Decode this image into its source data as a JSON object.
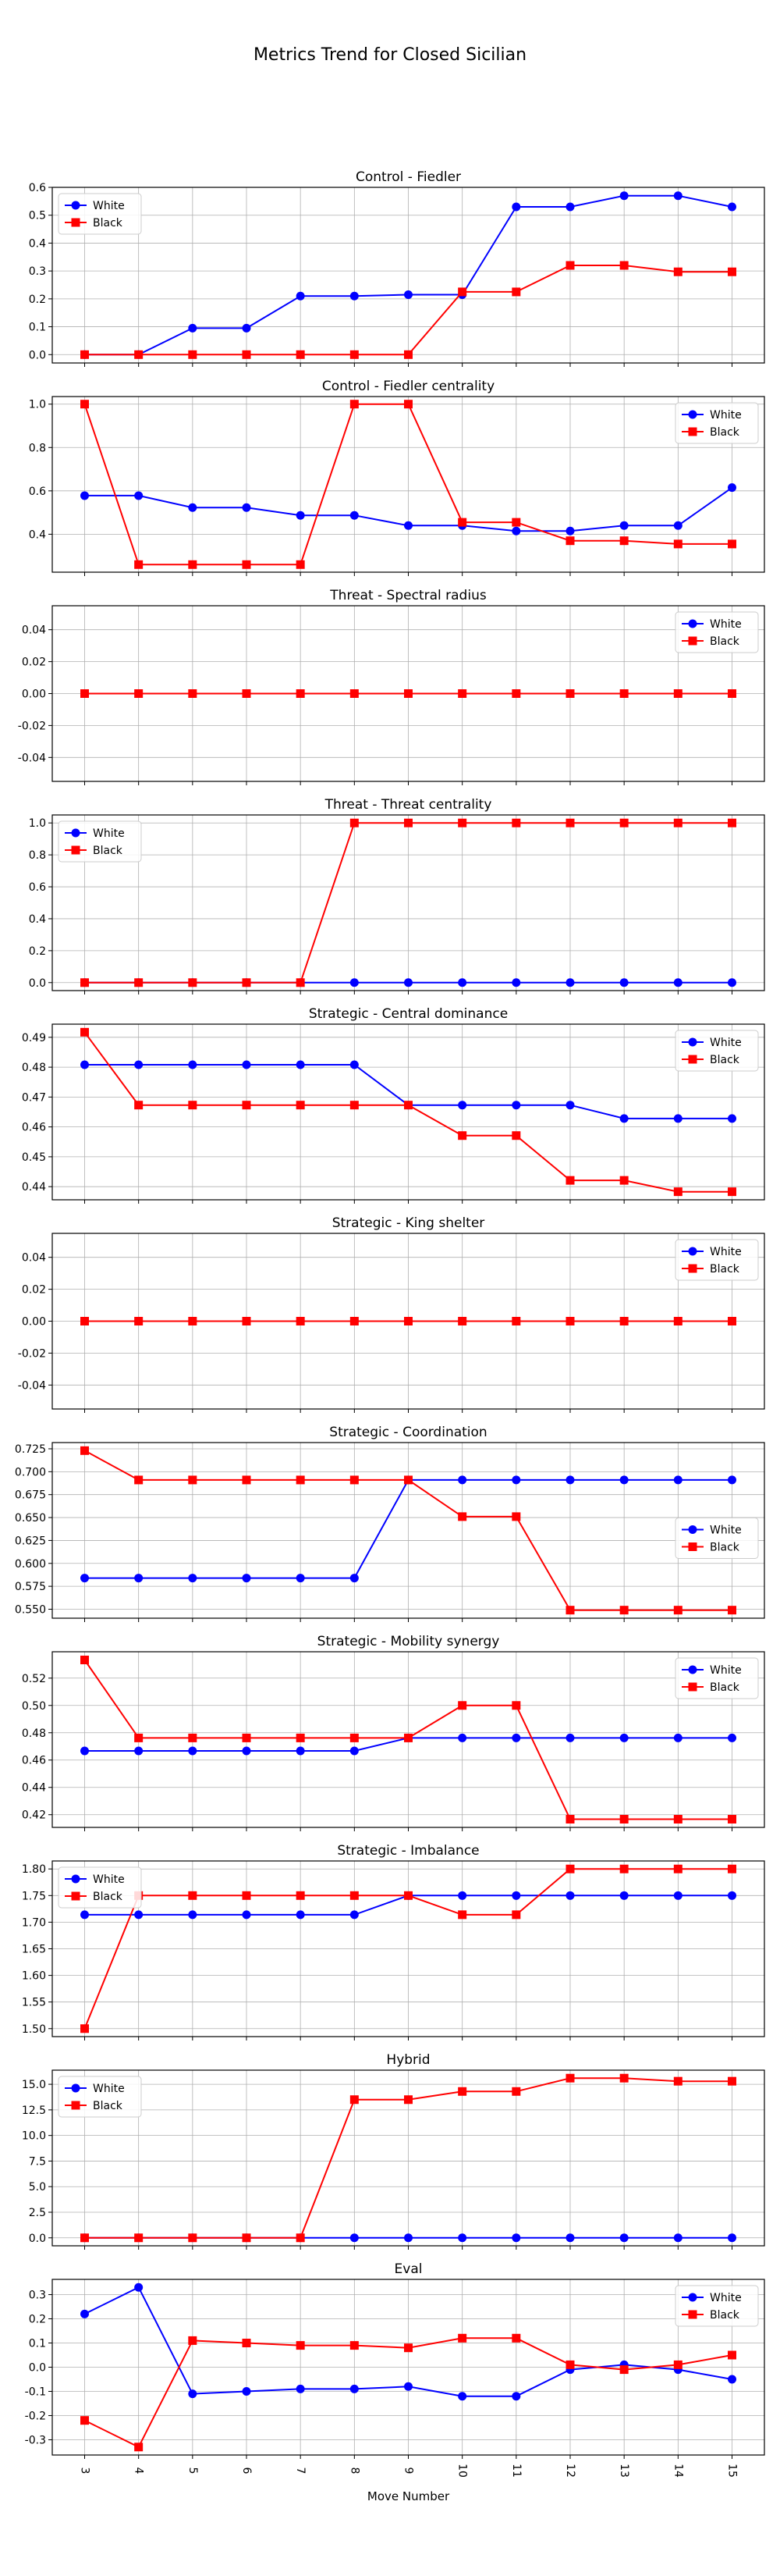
{
  "figure": {
    "title": "Metrics Trend for Closed Sicilian",
    "xlabel": "Move Number",
    "legend_labels": [
      "White",
      "Black"
    ],
    "colors": {
      "white": "#0000ff",
      "black": "#ff0000"
    }
  },
  "chart_data": [
    {
      "type": "line",
      "title": "Control - Fiedler",
      "x": [
        3,
        4,
        5,
        6,
        7,
        8,
        9,
        10,
        11,
        12,
        13,
        14,
        15
      ],
      "series": [
        {
          "name": "White",
          "marker": "circle",
          "values": [
            0.0,
            0.0,
            0.095,
            0.095,
            0.21,
            0.21,
            0.215,
            0.215,
            0.53,
            0.53,
            0.57,
            0.57,
            0.53
          ]
        },
        {
          "name": "Black",
          "marker": "square",
          "values": [
            0.0,
            0.0,
            0.0,
            0.0,
            0.0,
            0.0,
            0.0,
            0.225,
            0.225,
            0.32,
            0.32,
            0.297,
            0.297
          ]
        }
      ],
      "yticks": [
        0.0,
        0.1,
        0.2,
        0.3,
        0.4,
        0.5,
        0.6
      ],
      "ylim": [
        -0.03,
        0.6
      ],
      "legend": "upper left",
      "grid": true
    },
    {
      "type": "line",
      "title": "Control - Fiedler centrality",
      "x": [
        3,
        4,
        5,
        6,
        7,
        8,
        9,
        10,
        11,
        12,
        13,
        14,
        15
      ],
      "series": [
        {
          "name": "White",
          "marker": "circle",
          "values": [
            0.578,
            0.578,
            0.523,
            0.523,
            0.487,
            0.487,
            0.44,
            0.44,
            0.415,
            0.415,
            0.44,
            0.44,
            0.615
          ]
        },
        {
          "name": "Black",
          "marker": "square",
          "values": [
            1.0,
            0.26,
            0.26,
            0.26,
            0.26,
            1.0,
            1.0,
            0.455,
            0.455,
            0.37,
            0.37,
            0.355,
            0.355
          ]
        }
      ],
      "yticks": [
        0.4,
        0.6,
        0.8,
        1.0
      ],
      "ylim": [
        0.225,
        1.035
      ],
      "legend": "upper right",
      "grid": true
    },
    {
      "type": "line",
      "title": "Threat - Spectral radius",
      "x": [
        3,
        4,
        5,
        6,
        7,
        8,
        9,
        10,
        11,
        12,
        13,
        14,
        15
      ],
      "series": [
        {
          "name": "White",
          "marker": "circle",
          "values": [
            0,
            0,
            0,
            0,
            0,
            0,
            0,
            0,
            0,
            0,
            0,
            0,
            0
          ]
        },
        {
          "name": "Black",
          "marker": "square",
          "values": [
            0,
            0,
            0,
            0,
            0,
            0,
            0,
            0,
            0,
            0,
            0,
            0,
            0
          ]
        }
      ],
      "yticks": [
        -0.04,
        -0.02,
        0.0,
        0.02,
        0.04
      ],
      "ylim": [
        -0.055,
        0.055
      ],
      "legend": "upper right",
      "grid": true
    },
    {
      "type": "line",
      "title": "Threat - Threat centrality",
      "x": [
        3,
        4,
        5,
        6,
        7,
        8,
        9,
        10,
        11,
        12,
        13,
        14,
        15
      ],
      "series": [
        {
          "name": "White",
          "marker": "circle",
          "values": [
            0,
            0,
            0,
            0,
            0,
            0,
            0,
            0,
            0,
            0,
            0,
            0,
            0
          ]
        },
        {
          "name": "Black",
          "marker": "square",
          "values": [
            0,
            0,
            0,
            0,
            0,
            1,
            1,
            1,
            1,
            1,
            1,
            1,
            1
          ]
        }
      ],
      "yticks": [
        0.0,
        0.2,
        0.4,
        0.6,
        0.8,
        1.0
      ],
      "ylim": [
        -0.05,
        1.05
      ],
      "legend": "upper left",
      "grid": true
    },
    {
      "type": "line",
      "title": "Strategic - Central dominance",
      "x": [
        3,
        4,
        5,
        6,
        7,
        8,
        9,
        10,
        11,
        12,
        13,
        14,
        15
      ],
      "series": [
        {
          "name": "White",
          "marker": "circle",
          "values": [
            0.4808,
            0.4808,
            0.4808,
            0.4808,
            0.4808,
            0.4808,
            0.4673,
            0.4673,
            0.4673,
            0.4673,
            0.4628,
            0.4628,
            0.4628
          ]
        },
        {
          "name": "Black",
          "marker": "square",
          "values": [
            0.4917,
            0.4673,
            0.4673,
            0.4673,
            0.4673,
            0.4673,
            0.4673,
            0.4571,
            0.4571,
            0.4421,
            0.4421,
            0.4383,
            0.4383
          ]
        }
      ],
      "yticks": [
        0.44,
        0.45,
        0.46,
        0.47,
        0.48,
        0.49
      ],
      "ylim": [
        0.4356,
        0.4944
      ],
      "legend": "upper right",
      "grid": true
    },
    {
      "type": "line",
      "title": "Strategic - King shelter",
      "x": [
        3,
        4,
        5,
        6,
        7,
        8,
        9,
        10,
        11,
        12,
        13,
        14,
        15
      ],
      "series": [
        {
          "name": "White",
          "marker": "circle",
          "values": [
            0,
            0,
            0,
            0,
            0,
            0,
            0,
            0,
            0,
            0,
            0,
            0,
            0
          ]
        },
        {
          "name": "Black",
          "marker": "square",
          "values": [
            0,
            0,
            0,
            0,
            0,
            0,
            0,
            0,
            0,
            0,
            0,
            0,
            0
          ]
        }
      ],
      "yticks": [
        -0.04,
        -0.02,
        0.0,
        0.02,
        0.04
      ],
      "ylim": [
        -0.055,
        0.055
      ],
      "legend": "upper right",
      "grid": true
    },
    {
      "type": "line",
      "title": "Strategic - Coordination",
      "x": [
        3,
        4,
        5,
        6,
        7,
        8,
        9,
        10,
        11,
        12,
        13,
        14,
        15
      ],
      "series": [
        {
          "name": "White",
          "marker": "circle",
          "values": [
            0.584,
            0.584,
            0.584,
            0.584,
            0.584,
            0.584,
            0.691,
            0.691,
            0.691,
            0.691,
            0.691,
            0.691,
            0.691
          ]
        },
        {
          "name": "Black",
          "marker": "square",
          "values": [
            0.723,
            0.691,
            0.691,
            0.691,
            0.691,
            0.691,
            0.691,
            0.651,
            0.651,
            0.549,
            0.549,
            0.549,
            0.549
          ]
        }
      ],
      "yticks": [
        0.55,
        0.575,
        0.6,
        0.625,
        0.65,
        0.675,
        0.7,
        0.725
      ],
      "ylim": [
        0.5402,
        0.7318
      ],
      "legend": "center right",
      "grid": true
    },
    {
      "type": "line",
      "title": "Strategic - Mobility synergy",
      "x": [
        3,
        4,
        5,
        6,
        7,
        8,
        9,
        10,
        11,
        12,
        13,
        14,
        15
      ],
      "series": [
        {
          "name": "White",
          "marker": "circle",
          "values": [
            0.4667,
            0.4667,
            0.4667,
            0.4667,
            0.4667,
            0.4667,
            0.4762,
            0.4762,
            0.4762,
            0.4762,
            0.4762,
            0.4762,
            0.4762
          ]
        },
        {
          "name": "Black",
          "marker": "square",
          "values": [
            0.5333,
            0.4762,
            0.4762,
            0.4762,
            0.4762,
            0.4762,
            0.4762,
            0.5,
            0.5,
            0.4167,
            0.4167,
            0.4167,
            0.4167
          ]
        }
      ],
      "yticks": [
        0.42,
        0.44,
        0.46,
        0.48,
        0.5,
        0.52
      ],
      "ylim": [
        0.4107,
        0.5393
      ],
      "legend": "upper right",
      "grid": true
    },
    {
      "type": "line",
      "title": "Strategic - Imbalance",
      "x": [
        3,
        4,
        5,
        6,
        7,
        8,
        9,
        10,
        11,
        12,
        13,
        14,
        15
      ],
      "series": [
        {
          "name": "White",
          "marker": "circle",
          "values": [
            1.714,
            1.714,
            1.714,
            1.714,
            1.714,
            1.714,
            1.75,
            1.75,
            1.75,
            1.75,
            1.75,
            1.75,
            1.75
          ]
        },
        {
          "name": "Black",
          "marker": "square",
          "values": [
            1.5,
            1.75,
            1.75,
            1.75,
            1.75,
            1.75,
            1.75,
            1.714,
            1.714,
            1.8,
            1.8,
            1.8,
            1.8
          ]
        }
      ],
      "yticks": [
        1.5,
        1.55,
        1.6,
        1.65,
        1.7,
        1.75,
        1.8
      ],
      "ylim": [
        1.485,
        1.815
      ],
      "legend": "upper left",
      "grid": true
    },
    {
      "type": "line",
      "title": "Hybrid",
      "x": [
        3,
        4,
        5,
        6,
        7,
        8,
        9,
        10,
        11,
        12,
        13,
        14,
        15
      ],
      "series": [
        {
          "name": "White",
          "marker": "circle",
          "values": [
            0,
            0,
            0,
            0,
            0,
            0,
            0,
            0,
            0,
            0,
            0,
            0,
            0
          ]
        },
        {
          "name": "Black",
          "marker": "square",
          "values": [
            0,
            0,
            0,
            0,
            0,
            13.5,
            13.5,
            14.3,
            14.3,
            15.6,
            15.6,
            15.3,
            15.3
          ]
        }
      ],
      "yticks": [
        0.0,
        2.5,
        5.0,
        7.5,
        10.0,
        12.5,
        15.0
      ],
      "ylim": [
        -0.78,
        16.38
      ],
      "legend": "upper left",
      "grid": true
    },
    {
      "type": "line",
      "title": "Eval",
      "x": [
        3,
        4,
        5,
        6,
        7,
        8,
        9,
        10,
        11,
        12,
        13,
        14,
        15
      ],
      "series": [
        {
          "name": "White",
          "marker": "circle",
          "values": [
            0.22,
            0.33,
            -0.11,
            -0.1,
            -0.09,
            -0.09,
            -0.08,
            -0.12,
            -0.12,
            -0.01,
            0.01,
            -0.01,
            -0.05
          ]
        },
        {
          "name": "Black",
          "marker": "square",
          "values": [
            -0.22,
            -0.33,
            0.11,
            0.1,
            0.09,
            0.09,
            0.08,
            0.12,
            0.12,
            0.01,
            -0.01,
            0.01,
            0.05
          ]
        }
      ],
      "yticks": [
        -0.3,
        -0.2,
        -0.1,
        0.0,
        0.1,
        0.2,
        0.3
      ],
      "ylim": [
        -0.363,
        0.363
      ],
      "legend": "upper right",
      "grid": true
    }
  ]
}
